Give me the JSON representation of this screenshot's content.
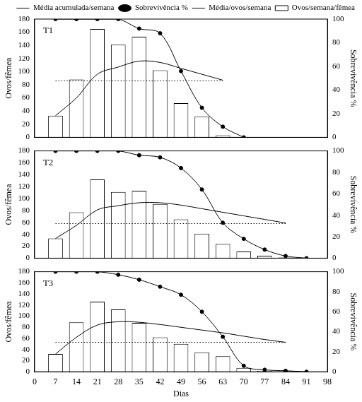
{
  "chart_data": [
    {
      "type": "bar",
      "title": "T1",
      "x": [
        7,
        14,
        21,
        28,
        35,
        42,
        49,
        56,
        63,
        70
      ],
      "series": [
        {
          "name": "Ovos/semana/fêmea",
          "type": "bar",
          "color": "#000000",
          "axis": "y",
          "marker": "none",
          "line_style": "solid",
          "values": [
            33,
            88,
            165,
            141,
            153,
            102,
            52,
            32,
            3,
            null
          ]
        },
        {
          "name": "Média acumulada/semana",
          "type": "line",
          "color": "#000000",
          "axis": "y",
          "marker": "none",
          "line_style": "solid",
          "values": [
            33,
            60,
            96,
            107,
            116,
            114,
            105,
            96,
            87,
            null
          ]
        },
        {
          "name": "Sobrevivência %",
          "type": "line",
          "color": "#000000",
          "axis": "y2",
          "marker": "circle",
          "line_style": "solid",
          "values": [
            100,
            100,
            100,
            100,
            92,
            88,
            56,
            25,
            9,
            0
          ]
        },
        {
          "name": "Média/ovos/semana",
          "type": "line",
          "color": "#000000",
          "axis": "y",
          "marker": "none",
          "line_style": "dotted",
          "values": [
            86,
            86,
            86,
            86,
            86,
            86,
            86,
            86,
            86,
            null
          ]
        }
      ],
      "xlim": [
        0,
        98
      ],
      "xticks": [
        0,
        7,
        14,
        21,
        28,
        35,
        42,
        49,
        56,
        63,
        70,
        77,
        84,
        91,
        98
      ],
      "ylim": [
        0,
        180
      ],
      "yticks": [
        0,
        20,
        40,
        60,
        80,
        100,
        120,
        140,
        160,
        180
      ],
      "y2lim": [
        0,
        100
      ],
      "y2ticks": [
        0,
        20,
        40,
        60,
        80,
        100
      ],
      "y_label": "Ovos/fêmea",
      "y2_label": "Sobrevivência %",
      "tick_labels": "y",
      "legend": "top-right",
      "grid": false
    },
    {
      "type": "bar",
      "title": "T2",
      "x": [
        7,
        14,
        21,
        28,
        35,
        42,
        49,
        56,
        63,
        70,
        77,
        84,
        91
      ],
      "series": [
        {
          "type": "bar",
          "color": "#000000",
          "axis": "y",
          "marker": "none",
          "line_style": "solid",
          "values": [
            33,
            77,
            132,
            111,
            113,
            91,
            65,
            41,
            24,
            11,
            4,
            1,
            null
          ]
        },
        {
          "type": "line",
          "color": "#000000",
          "axis": "y",
          "marker": "none",
          "line_style": "solid",
          "values": [
            33,
            55,
            81,
            88,
            93,
            93,
            89,
            83,
            77,
            71,
            65,
            59,
            null
          ]
        },
        {
          "type": "line",
          "color": "#000000",
          "axis": "y2",
          "marker": "circle",
          "line_style": "solid",
          "values": [
            100,
            100,
            100,
            100,
            96,
            94,
            84,
            64,
            33,
            18,
            8,
            2,
            0
          ]
        },
        {
          "type": "line",
          "color": "#000000",
          "axis": "y",
          "marker": "none",
          "line_style": "dotted",
          "values": [
            58,
            58,
            58,
            58,
            58,
            58,
            58,
            58,
            58,
            58,
            58,
            58,
            null
          ]
        }
      ],
      "xlim": [
        0,
        98
      ],
      "xticks": [
        0,
        7,
        14,
        21,
        28,
        35,
        42,
        49,
        56,
        63,
        70,
        77,
        84,
        91,
        98
      ],
      "ylim": [
        0,
        180
      ],
      "yticks": [
        0,
        20,
        40,
        60,
        80,
        100,
        120,
        140,
        160,
        180
      ],
      "y2lim": [
        0,
        100
      ],
      "y2ticks": [
        0,
        20,
        40,
        60,
        80,
        100
      ],
      "y_label": "Ovos/fêmea",
      "y2_label": "Sobrevivência %",
      "tick_labels": "y",
      "grid": false
    },
    {
      "type": "bar",
      "title": "T3",
      "x": [
        7,
        14,
        21,
        28,
        35,
        42,
        49,
        56,
        63,
        70,
        77,
        84,
        91
      ],
      "series": [
        {
          "type": "bar",
          "color": "#000000",
          "axis": "y",
          "marker": "none",
          "line_style": "solid",
          "values": [
            32,
            89,
            126,
            112,
            88,
            62,
            50,
            35,
            28,
            7,
            2,
            1,
            null
          ]
        },
        {
          "type": "line",
          "color": "#000000",
          "axis": "y",
          "marker": "none",
          "line_style": "solid",
          "values": [
            32,
            62,
            84,
            90,
            89,
            85,
            80,
            75,
            70,
            64,
            58,
            53,
            null
          ]
        },
        {
          "type": "line",
          "color": "#000000",
          "axis": "y2",
          "marker": "circle",
          "line_style": "solid",
          "values": [
            100,
            100,
            100,
            97,
            92,
            85,
            77,
            60,
            35,
            6,
            2,
            1,
            0
          ]
        },
        {
          "type": "line",
          "color": "#000000",
          "axis": "y",
          "marker": "none",
          "line_style": "dotted",
          "values": [
            53,
            53,
            53,
            53,
            53,
            53,
            53,
            53,
            53,
            53,
            53,
            53,
            null
          ]
        }
      ],
      "xlim": [
        0,
        98
      ],
      "xticks": [
        0,
        7,
        14,
        21,
        28,
        35,
        42,
        49,
        56,
        63,
        70,
        77,
        84,
        91,
        98
      ],
      "ylim": [
        0,
        180
      ],
      "yticks": [
        0,
        20,
        40,
        60,
        80,
        100,
        120,
        140,
        160,
        180
      ],
      "y2lim": [
        0,
        100
      ],
      "y2ticks": [
        0,
        20,
        40,
        60,
        80,
        100
      ],
      "y_label": "Ovos/fêmea",
      "y2_label": "Sobrevivência %",
      "x_label": "Dias",
      "grid": false
    }
  ]
}
